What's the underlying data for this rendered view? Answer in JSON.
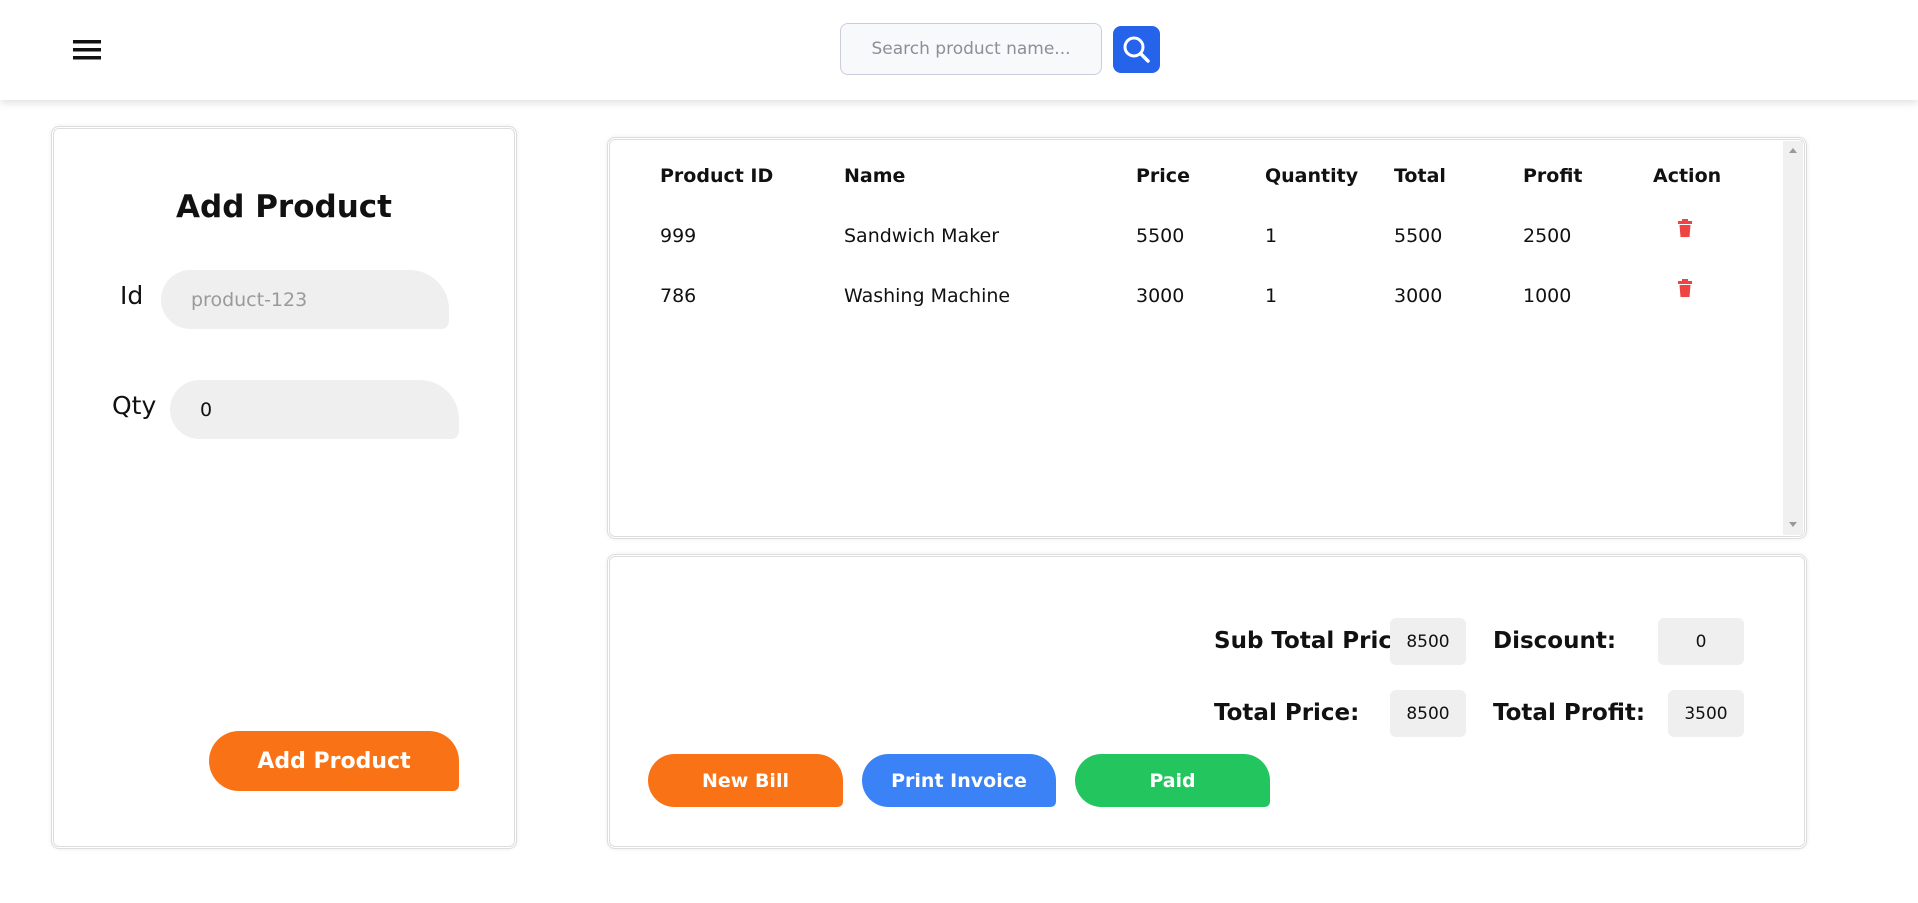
{
  "header": {
    "search_placeholder": "Search product name..."
  },
  "add_product": {
    "title": "Add Product",
    "fields": [
      {
        "label": "Id",
        "placeholder": "product-123"
      },
      {
        "label": "Qty",
        "value": "0"
      }
    ],
    "button": "Add Product"
  },
  "table": {
    "columns": [
      "Product ID",
      "Name",
      "Price",
      "Quantity",
      "Total",
      "Profit",
      "Action"
    ],
    "rows": [
      [
        "999",
        "Sandwich Maker",
        "5500",
        "1",
        "5500",
        "2500"
      ],
      [
        "786",
        "Washing Machine",
        "3000",
        "1",
        "3000",
        "1000"
      ]
    ]
  },
  "summary": {
    "sub_total_label": "Sub Total Price:",
    "sub_total": "8500",
    "discount_label": "Discount:",
    "discount": "0",
    "total_label": "Total Price:",
    "total": "8500",
    "profit_label": "Total Profit:",
    "profit": "3500",
    "buttons": [
      "New Bill",
      "Print Invoice",
      "Paid"
    ]
  }
}
